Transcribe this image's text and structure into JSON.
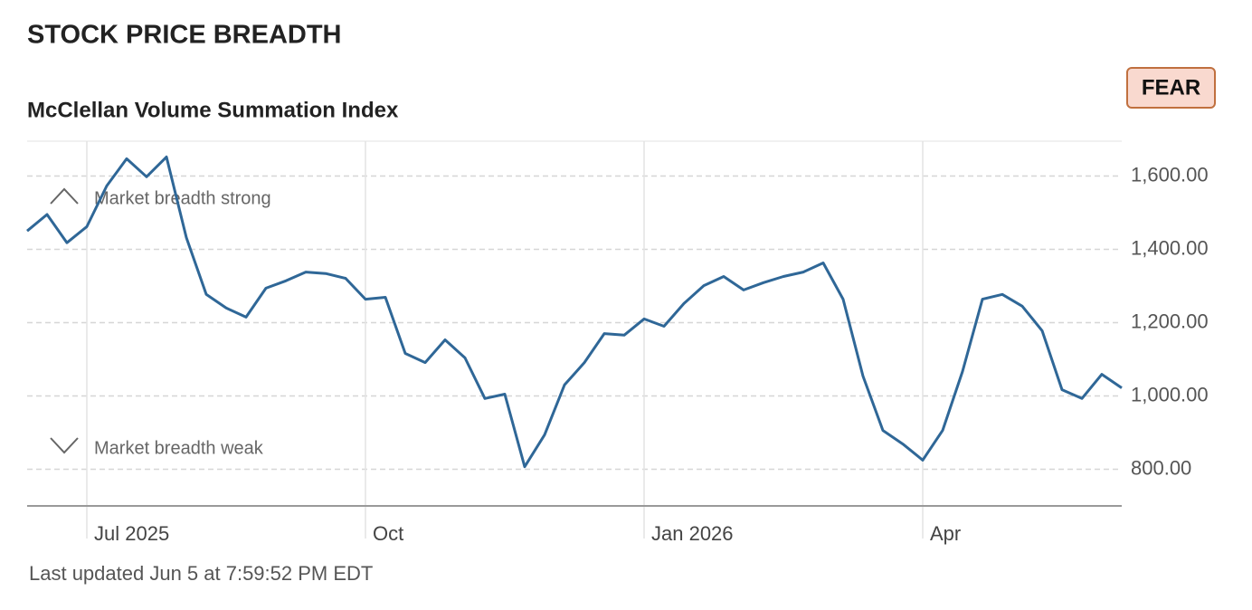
{
  "chart_data": {
    "type": "line",
    "title": "STOCK PRICE BREADTH",
    "subtitle": "McClellan Volume Summation Index",
    "badge": "FEAR",
    "annotations": [
      "Market breadth strong",
      "Market breadth weak"
    ],
    "footnote": "Last updated Jun 5 at 7:59:52 PM EDT",
    "categories": [
      null,
      null,
      null,
      "Jul 2025",
      null,
      null,
      null,
      null,
      null,
      null,
      null,
      null,
      null,
      null,
      null,
      null,
      null,
      "Oct",
      null,
      null,
      null,
      null,
      null,
      null,
      null,
      null,
      null,
      null,
      null,
      null,
      null,
      "Jan 2026",
      null,
      null,
      null,
      null,
      null,
      null,
      null,
      null,
      null,
      null,
      null,
      null,
      null,
      "Apr",
      null,
      null,
      null,
      null,
      null,
      null,
      null,
      null,
      null,
      null
    ],
    "values": [
      1450,
      1495,
      1418,
      1462,
      1573,
      1647,
      1598,
      1652,
      1432,
      1277,
      1240,
      1215,
      1294,
      1314,
      1338,
      1334,
      1321,
      1264,
      1269,
      1116,
      1091,
      1153,
      1104,
      993,
      1005,
      807,
      894,
      1030,
      1091,
      1170,
      1166,
      1210,
      1190,
      1252,
      1301,
      1326,
      1289,
      1309,
      1326,
      1338,
      1363,
      1264,
      1054,
      906,
      869,
      825,
      906,
      1067,
      1264,
      1277,
      1245,
      1178,
      1017,
      993,
      1059,
      1022
    ],
    "color": "#2f6797",
    "ylim": [
      700,
      1695
    ],
    "yticks": [
      {
        "value": 800,
        "label": "800.00"
      },
      {
        "value": 1000,
        "label": "1,000.00"
      },
      {
        "value": 1200,
        "label": "1,200.00"
      },
      {
        "value": 1400,
        "label": "1,400.00"
      },
      {
        "value": 1600,
        "label": "1,600.00"
      }
    ],
    "grid": true
  }
}
